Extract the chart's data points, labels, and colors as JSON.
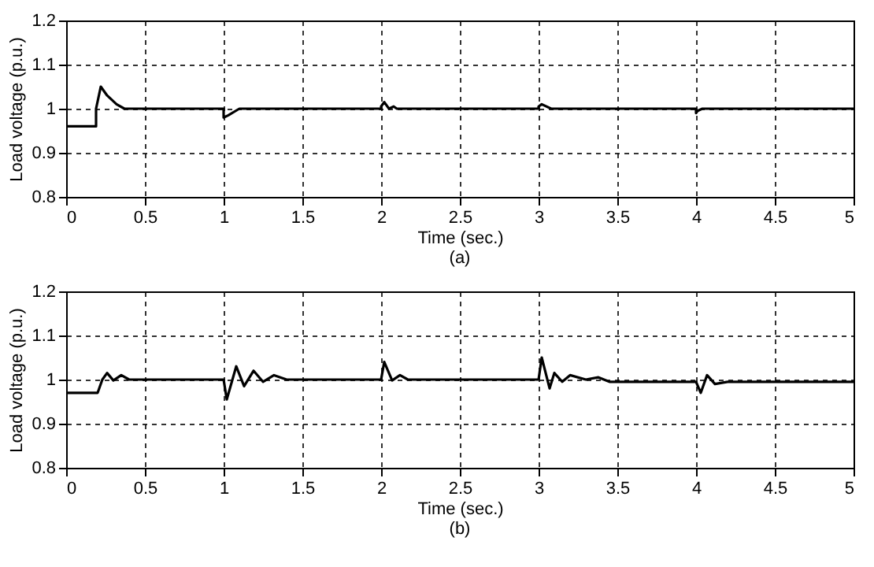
{
  "chart_data": [
    {
      "type": "line",
      "xlabel": "Time (sec.)",
      "ylabel": "Load voltage (p.u.)",
      "annotations": [
        "(a)"
      ],
      "xlim": [
        0,
        5
      ],
      "ylim": [
        0.8,
        1.2
      ],
      "xticks": [
        0,
        0.5,
        1,
        1.5,
        2,
        2.5,
        3,
        3.5,
        4,
        4.5,
        5
      ],
      "yticks": [
        0.8,
        0.9,
        1,
        1.1,
        1.2
      ],
      "grid": true,
      "series": [
        {
          "color": "#000000",
          "x": [
            0,
            0,
            0.19,
            0.19,
            0.22,
            0.26,
            0.32,
            0.37,
            1.0,
            1.0,
            1.03,
            1.1,
            2.0,
            2.0,
            2.02,
            2.05,
            2.08,
            2.1,
            3.0,
            3.0,
            3.02,
            3.08,
            4.0,
            4.0,
            4.01,
            4.04,
            5
          ],
          "values": [
            1.0,
            0.96,
            0.96,
            1.0,
            1.05,
            1.03,
            1.01,
            1.0,
            1.0,
            0.98,
            0.985,
            1.0,
            1.0,
            1.005,
            1.015,
            1.0,
            1.005,
            1.0,
            1.0,
            1.005,
            1.01,
            1.0,
            1.0,
            0.99,
            0.995,
            1.0,
            1.0
          ]
        }
      ]
    },
    {
      "type": "line",
      "xlabel": "Time (sec.)",
      "ylabel": "Load voltage (p.u.)",
      "annotations": [
        "(b)"
      ],
      "xlim": [
        0,
        5
      ],
      "ylim": [
        0.8,
        1.2
      ],
      "xticks": [
        0,
        0.5,
        1,
        1.5,
        2,
        2.5,
        3,
        3.5,
        4,
        4.5,
        5
      ],
      "yticks": [
        0.8,
        0.9,
        1,
        1.1,
        1.2
      ],
      "grid": true,
      "series": [
        {
          "color": "#000000",
          "x": [
            0,
            0,
            0.2,
            0.23,
            0.26,
            0.3,
            0.35,
            0.4,
            0.45,
            1.0,
            1.02,
            1.08,
            1.13,
            1.19,
            1.25,
            1.32,
            1.4,
            2.0,
            2.02,
            2.07,
            2.12,
            2.17,
            3.0,
            3.02,
            3.07,
            3.1,
            3.15,
            3.2,
            3.3,
            3.38,
            3.45,
            4.0,
            4.03,
            4.07,
            4.12,
            4.2,
            5
          ],
          "values": [
            0.8,
            0.97,
            0.97,
            1.0,
            1.015,
            0.998,
            1.01,
            1.0,
            1.0,
            1.0,
            0.955,
            1.03,
            0.985,
            1.02,
            0.995,
            1.01,
            1.0,
            1.0,
            1.04,
            0.998,
            1.01,
            1.0,
            1.0,
            1.05,
            0.98,
            1.015,
            0.995,
            1.01,
            1.0,
            1.005,
            0.995,
            0.995,
            0.97,
            1.01,
            0.99,
            0.995,
            0.995
          ]
        }
      ]
    }
  ]
}
